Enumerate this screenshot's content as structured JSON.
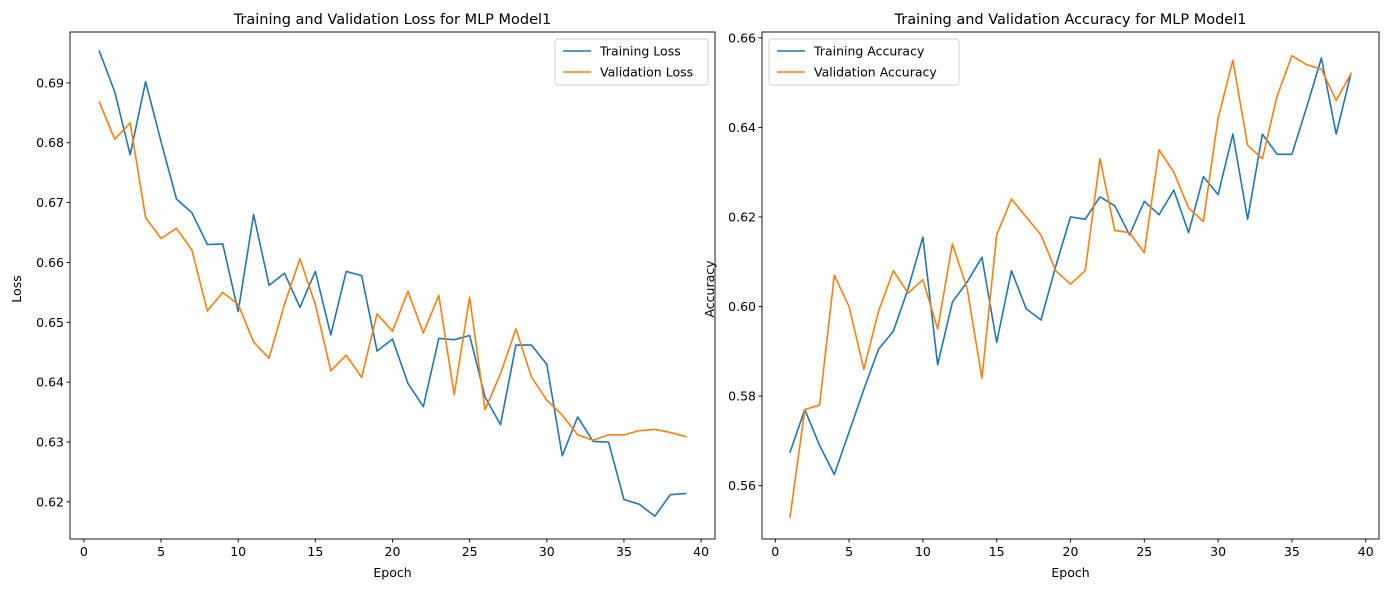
{
  "colors": {
    "training": "#1f77b4",
    "validation": "#ff7f0e"
  },
  "chart_data": [
    {
      "type": "line",
      "title": "Training and Validation Loss for MLP Model1",
      "xlabel": "Epoch",
      "ylabel": "Loss",
      "xlim": [
        -0.9,
        40.9
      ],
      "ylim": [
        0.6138,
        0.6985
      ],
      "xticks": [
        0,
        5,
        10,
        15,
        20,
        25,
        30,
        35,
        40
      ],
      "yticks": [
        0.62,
        0.63,
        0.64,
        0.65,
        0.66,
        0.67,
        0.68,
        0.69
      ],
      "ytick_labels": [
        "0.62",
        "0.63",
        "0.64",
        "0.65",
        "0.66",
        "0.67",
        "0.68",
        "0.69"
      ],
      "legend_position": "upper right",
      "grid": false,
      "x": [
        1,
        2,
        3,
        4,
        5,
        6,
        7,
        8,
        9,
        10,
        11,
        12,
        13,
        14,
        15,
        16,
        17,
        18,
        19,
        20,
        21,
        22,
        23,
        24,
        25,
        26,
        27,
        28,
        29,
        30,
        31,
        32,
        33,
        34,
        35,
        36,
        37,
        38,
        39
      ],
      "series": [
        {
          "name": "Training Loss",
          "color": "#1f77b4",
          "values": [
            0.6953,
            0.6885,
            0.678,
            0.6902,
            0.6802,
            0.6706,
            0.6683,
            0.663,
            0.6631,
            0.6518,
            0.668,
            0.6562,
            0.6582,
            0.6525,
            0.6585,
            0.6479,
            0.6585,
            0.6578,
            0.6452,
            0.6472,
            0.6398,
            0.6359,
            0.6473,
            0.6471,
            0.6478,
            0.6375,
            0.6329,
            0.6462,
            0.6462,
            0.643,
            0.6277,
            0.6342,
            0.6301,
            0.63,
            0.6204,
            0.6196,
            0.6176,
            0.6212,
            0.6214
          ]
        },
        {
          "name": "Validation Loss",
          "color": "#ff7f0e",
          "values": [
            0.6868,
            0.6806,
            0.6833,
            0.6675,
            0.664,
            0.6657,
            0.6621,
            0.6519,
            0.655,
            0.653,
            0.6467,
            0.644,
            0.653,
            0.6606,
            0.653,
            0.6419,
            0.6445,
            0.6408,
            0.6514,
            0.6485,
            0.6552,
            0.6482,
            0.6545,
            0.6379,
            0.6542,
            0.6354,
            0.6414,
            0.6489,
            0.6409,
            0.637,
            0.6345,
            0.6312,
            0.6303,
            0.6312,
            0.6312,
            0.6319,
            0.6321,
            0.6316,
            0.6309
          ]
        }
      ]
    },
    {
      "type": "line",
      "title": "Training and Validation Accuracy for MLP Model1",
      "xlabel": "Epoch",
      "ylabel": "Accuracy",
      "xlim": [
        -0.9,
        40.9
      ],
      "ylim": [
        0.5481,
        0.6613
      ],
      "xticks": [
        0,
        5,
        10,
        15,
        20,
        25,
        30,
        35,
        40
      ],
      "yticks": [
        0.56,
        0.58,
        0.6,
        0.62,
        0.64,
        0.66
      ],
      "ytick_labels": [
        "0.56",
        "0.58",
        "0.60",
        "0.62",
        "0.64",
        "0.66"
      ],
      "legend_position": "upper left",
      "grid": false,
      "x": [
        1,
        2,
        3,
        4,
        5,
        6,
        7,
        8,
        9,
        10,
        11,
        12,
        13,
        14,
        15,
        16,
        17,
        18,
        19,
        20,
        21,
        22,
        23,
        24,
        25,
        26,
        27,
        28,
        29,
        30,
        31,
        32,
        33,
        34,
        35,
        36,
        37,
        38,
        39
      ],
      "series": [
        {
          "name": "Training Accuracy",
          "color": "#1f77b4",
          "values": [
            0.5675,
            0.577,
            0.569,
            0.5625,
            0.572,
            0.5815,
            0.5905,
            0.5945,
            0.604,
            0.6155,
            0.587,
            0.601,
            0.6055,
            0.611,
            0.592,
            0.608,
            0.5995,
            0.597,
            0.609,
            0.62,
            0.6195,
            0.6245,
            0.6225,
            0.616,
            0.6235,
            0.6205,
            0.626,
            0.6165,
            0.629,
            0.625,
            0.6385,
            0.6195,
            0.6385,
            0.634,
            0.634,
            0.6445,
            0.6555,
            0.6385,
            0.652
          ]
        },
        {
          "name": "Validation Accuracy",
          "color": "#ff7f0e",
          "values": [
            0.553,
            0.577,
            0.578,
            0.607,
            0.6,
            0.586,
            0.599,
            0.608,
            0.603,
            0.606,
            0.595,
            0.614,
            0.604,
            0.584,
            0.616,
            0.624,
            0.62,
            0.616,
            0.608,
            0.605,
            0.608,
            0.633,
            0.617,
            0.6165,
            0.612,
            0.635,
            0.63,
            0.622,
            0.619,
            0.642,
            0.655,
            0.636,
            0.633,
            0.647,
            0.656,
            0.654,
            0.653,
            0.646,
            0.652
          ]
        }
      ]
    }
  ]
}
